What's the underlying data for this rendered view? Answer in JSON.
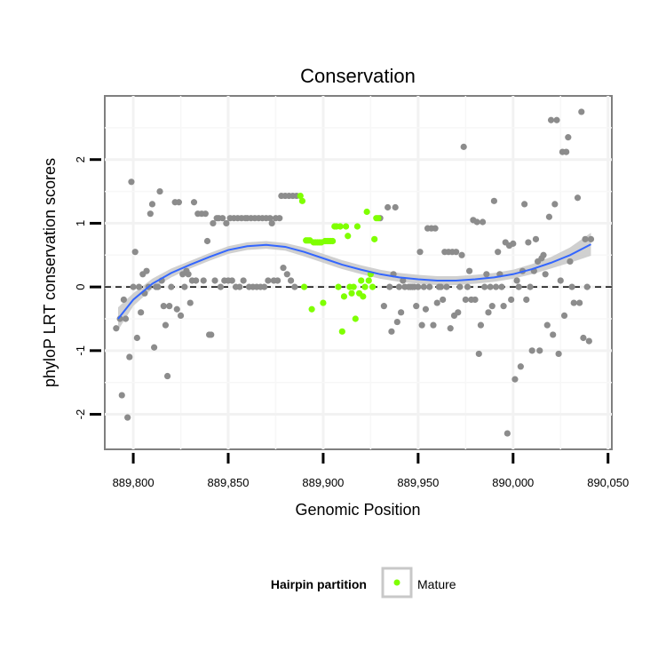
{
  "chart_data": {
    "type": "scatter",
    "title": "Conservation",
    "xlabel": "Genomic Position",
    "ylabel": "phyloP LRT conservation scores",
    "xlim": [
      889785,
      890052
    ],
    "ylim": [
      -2.55,
      3.0
    ],
    "x_ticks": [
      889800,
      889850,
      889900,
      889950,
      890000,
      890050
    ],
    "x_tick_labels": [
      "889,800",
      "889,850",
      "889,900",
      "889,950",
      "890,000",
      "890,050"
    ],
    "y_ticks": [
      -2,
      -1,
      0,
      1,
      2
    ],
    "y_tick_labels": [
      "-2",
      "-1",
      "0",
      "1",
      "2"
    ],
    "grid": true,
    "reference_line": {
      "y": 0,
      "style": "dashed"
    },
    "colors": {
      "other": "#8c8c8c",
      "mature": "#7fff00",
      "smooth": "#3366ff",
      "band": "#c8c8c8"
    },
    "legend": {
      "position": "bottom",
      "title": "Hairpin partition",
      "entries": [
        "Mature"
      ]
    },
    "series": [
      {
        "name": "",
        "points": [
          [
            889791,
            -0.65
          ],
          [
            889793,
            -0.5
          ],
          [
            889794,
            -1.7
          ],
          [
            889795,
            -0.2
          ],
          [
            889796,
            -0.5
          ],
          [
            889797,
            -2.05
          ],
          [
            889798,
            -1.1
          ],
          [
            889799,
            1.65
          ],
          [
            889800,
            0.0
          ],
          [
            889801,
            0.55
          ],
          [
            889802,
            -0.8
          ],
          [
            889803,
            0.0
          ],
          [
            889804,
            -0.4
          ],
          [
            889805,
            0.2
          ],
          [
            889806,
            -0.1
          ],
          [
            889807,
            0.25
          ],
          [
            889808,
            0.0
          ],
          [
            889809,
            1.15
          ],
          [
            889810,
            1.3
          ],
          [
            889811,
            -0.95
          ],
          [
            889812,
            0.0
          ],
          [
            889813,
            0.0
          ],
          [
            889814,
            1.5
          ],
          [
            889815,
            0.1
          ],
          [
            889816,
            -0.3
          ],
          [
            889817,
            -0.6
          ],
          [
            889818,
            -1.4
          ],
          [
            889819,
            -0.3
          ],
          [
            889820,
            0.0
          ],
          [
            889822,
            1.33
          ],
          [
            889823,
            -0.35
          ],
          [
            889824,
            1.33
          ],
          [
            889825,
            -0.45
          ],
          [
            889826,
            0.2
          ],
          [
            889827,
            0.0
          ],
          [
            889828,
            0.25
          ],
          [
            889829,
            0.2
          ],
          [
            889830,
            -0.25
          ],
          [
            889831,
            0.1
          ],
          [
            889832,
            1.33
          ],
          [
            889833,
            0.1
          ],
          [
            889834,
            1.15
          ],
          [
            889836,
            1.15
          ],
          [
            889837,
            0.1
          ],
          [
            889838,
            1.15
          ],
          [
            889839,
            0.72
          ],
          [
            889840,
            -0.75
          ],
          [
            889841,
            -0.75
          ],
          [
            889842,
            1.0
          ],
          [
            889843,
            0.1
          ],
          [
            889844,
            1.08
          ],
          [
            889845,
            1.08
          ],
          [
            889846,
            0.0
          ],
          [
            889847,
            1.08
          ],
          [
            889848,
            0.1
          ],
          [
            889849,
            1.0
          ],
          [
            889850,
            0.1
          ],
          [
            889851,
            1.08
          ],
          [
            889852,
            0.1
          ],
          [
            889853,
            1.08
          ],
          [
            889854,
            0.0
          ],
          [
            889855,
            1.08
          ],
          [
            889856,
            0.0
          ],
          [
            889857,
            1.08
          ],
          [
            889858,
            0.1
          ],
          [
            889859,
            1.08
          ],
          [
            889860,
            1.08
          ],
          [
            889861,
            0.0
          ],
          [
            889862,
            1.08
          ],
          [
            889863,
            0.0
          ],
          [
            889864,
            1.08
          ],
          [
            889865,
            0.0
          ],
          [
            889866,
            1.08
          ],
          [
            889867,
            0.0
          ],
          [
            889868,
            1.08
          ],
          [
            889869,
            0.0
          ],
          [
            889870,
            1.08
          ],
          [
            889871,
            0.1
          ],
          [
            889872,
            1.08
          ],
          [
            889873,
            1.0
          ],
          [
            889874,
            0.1
          ],
          [
            889875,
            1.08
          ],
          [
            889876,
            0.1
          ],
          [
            889877,
            1.08
          ],
          [
            889878,
            1.43
          ],
          [
            889879,
            0.3
          ],
          [
            889880,
            1.43
          ],
          [
            889881,
            0.2
          ],
          [
            889882,
            1.43
          ],
          [
            889883,
            0.1
          ],
          [
            889884,
            1.43
          ],
          [
            889885,
            0.0
          ],
          [
            889886,
            1.43
          ],
          [
            889930,
            1.08
          ],
          [
            889932,
            -0.3
          ],
          [
            889934,
            1.25
          ],
          [
            889935,
            0.0
          ],
          [
            889936,
            -0.7
          ],
          [
            889937,
            0.2
          ],
          [
            889938,
            1.25
          ],
          [
            889939,
            -0.55
          ],
          [
            889940,
            0.0
          ],
          [
            889941,
            -0.4
          ],
          [
            889942,
            0.1
          ],
          [
            889943,
            0.0
          ],
          [
            889945,
            0.0
          ],
          [
            889946,
            0.0
          ],
          [
            889947,
            0.0
          ],
          [
            889948,
            0.0
          ],
          [
            889949,
            -0.3
          ],
          [
            889950,
            0.0
          ],
          [
            889951,
            0.55
          ],
          [
            889952,
            -0.6
          ],
          [
            889953,
            0.0
          ],
          [
            889954,
            -0.35
          ],
          [
            889955,
            0.92
          ],
          [
            889956,
            0.0
          ],
          [
            889957,
            0.92
          ],
          [
            889958,
            -0.6
          ],
          [
            889959,
            0.92
          ],
          [
            889960,
            -0.25
          ],
          [
            889961,
            0.0
          ],
          [
            889962,
            0.0
          ],
          [
            889963,
            -0.2
          ],
          [
            889964,
            0.55
          ],
          [
            889965,
            0.0
          ],
          [
            889966,
            0.55
          ],
          [
            889967,
            -0.65
          ],
          [
            889968,
            0.55
          ],
          [
            889969,
            -0.45
          ],
          [
            889970,
            0.55
          ],
          [
            889971,
            -0.4
          ],
          [
            889972,
            0.0
          ],
          [
            889973,
            0.5
          ],
          [
            889974,
            2.2
          ],
          [
            889975,
            -0.2
          ],
          [
            889976,
            0.0
          ],
          [
            889977,
            0.25
          ],
          [
            889978,
            -0.2
          ],
          [
            889979,
            1.05
          ],
          [
            889980,
            -0.2
          ],
          [
            889981,
            1.02
          ],
          [
            889982,
            -1.05
          ],
          [
            889983,
            -0.6
          ],
          [
            889984,
            1.02
          ],
          [
            889985,
            0.0
          ],
          [
            889986,
            0.2
          ],
          [
            889987,
            -0.4
          ],
          [
            889988,
            0.0
          ],
          [
            889989,
            -0.3
          ],
          [
            889990,
            1.35
          ],
          [
            889991,
            0.0
          ],
          [
            889992,
            0.55
          ],
          [
            889993,
            0.2
          ],
          [
            889994,
            0.0
          ],
          [
            889995,
            -0.3
          ],
          [
            889996,
            0.7
          ],
          [
            889997,
            -2.3
          ],
          [
            889998,
            0.65
          ],
          [
            889999,
            -0.2
          ],
          [
            890000,
            0.68
          ],
          [
            890001,
            -1.45
          ],
          [
            890002,
            0.1
          ],
          [
            890003,
            0.0
          ],
          [
            890004,
            -1.25
          ],
          [
            890005,
            0.25
          ],
          [
            890006,
            1.3
          ],
          [
            890007,
            -0.2
          ],
          [
            890008,
            0.7
          ],
          [
            890009,
            0.0
          ],
          [
            890010,
            -1.0
          ],
          [
            890011,
            0.25
          ],
          [
            890012,
            0.75
          ],
          [
            890013,
            0.4
          ],
          [
            890014,
            -1.0
          ],
          [
            890015,
            0.45
          ],
          [
            890016,
            0.5
          ],
          [
            890017,
            0.2
          ],
          [
            890018,
            -0.6
          ],
          [
            890019,
            1.1
          ],
          [
            890020,
            2.62
          ],
          [
            890021,
            -0.75
          ],
          [
            890022,
            1.3
          ],
          [
            890023,
            2.62
          ],
          [
            890024,
            -1.05
          ],
          [
            890025,
            0.1
          ],
          [
            890026,
            2.12
          ],
          [
            890027,
            -0.45
          ],
          [
            890028,
            2.12
          ],
          [
            890029,
            2.35
          ],
          [
            890030,
            0.4
          ],
          [
            890031,
            0.0
          ],
          [
            890032,
            -0.25
          ],
          [
            890034,
            1.4
          ],
          [
            890035,
            -0.25
          ],
          [
            890036,
            2.75
          ],
          [
            890037,
            -0.8
          ],
          [
            890038,
            0.75
          ],
          [
            890039,
            0.0
          ],
          [
            890040,
            -0.85
          ],
          [
            890041,
            0.75
          ]
        ]
      },
      {
        "name": "Mature",
        "points": [
          [
            889888,
            1.43
          ],
          [
            889889,
            1.35
          ],
          [
            889890,
            0.0
          ],
          [
            889891,
            0.73
          ],
          [
            889892,
            0.73
          ],
          [
            889893,
            0.73
          ],
          [
            889894,
            -0.35
          ],
          [
            889895,
            0.7
          ],
          [
            889896,
            0.7
          ],
          [
            889897,
            0.7
          ],
          [
            889898,
            0.7
          ],
          [
            889899,
            0.7
          ],
          [
            889900,
            -0.25
          ],
          [
            889901,
            0.72
          ],
          [
            889902,
            0.72
          ],
          [
            889903,
            0.72
          ],
          [
            889904,
            0.72
          ],
          [
            889905,
            0.72
          ],
          [
            889906,
            0.95
          ],
          [
            889907,
            0.95
          ],
          [
            889908,
            0.0
          ],
          [
            889909,
            0.95
          ],
          [
            889910,
            -0.7
          ],
          [
            889911,
            -0.15
          ],
          [
            889912,
            0.95
          ],
          [
            889913,
            0.8
          ],
          [
            889914,
            0.0
          ],
          [
            889915,
            -0.1
          ],
          [
            889916,
            0.0
          ],
          [
            889917,
            -0.5
          ],
          [
            889918,
            0.95
          ],
          [
            889919,
            -0.1
          ],
          [
            889920,
            0.1
          ],
          [
            889921,
            -0.15
          ],
          [
            889922,
            0.0
          ],
          [
            889923,
            1.18
          ],
          [
            889924,
            0.1
          ],
          [
            889925,
            0.2
          ],
          [
            889926,
            0.0
          ],
          [
            889927,
            0.75
          ],
          [
            889928,
            1.08
          ],
          [
            889929,
            1.08
          ]
        ]
      }
    ],
    "smooth": {
      "x": [
        889792,
        889800,
        889810,
        889820,
        889830,
        889840,
        889850,
        889860,
        889870,
        889880,
        889890,
        889900,
        889910,
        889920,
        889930,
        889940,
        889950,
        889960,
        889970,
        889980,
        889990,
        890000,
        890010,
        890020,
        890030,
        890041
      ],
      "y": [
        -0.5,
        -0.2,
        0.05,
        0.22,
        0.35,
        0.47,
        0.58,
        0.64,
        0.66,
        0.63,
        0.55,
        0.45,
        0.35,
        0.27,
        0.2,
        0.15,
        0.12,
        0.1,
        0.1,
        0.12,
        0.15,
        0.2,
        0.28,
        0.38,
        0.5,
        0.67
      ],
      "band": [
        0.18,
        0.1,
        0.08,
        0.07,
        0.06,
        0.06,
        0.06,
        0.06,
        0.06,
        0.06,
        0.07,
        0.07,
        0.07,
        0.07,
        0.07,
        0.07,
        0.07,
        0.07,
        0.07,
        0.07,
        0.07,
        0.07,
        0.08,
        0.09,
        0.12,
        0.18
      ]
    }
  }
}
